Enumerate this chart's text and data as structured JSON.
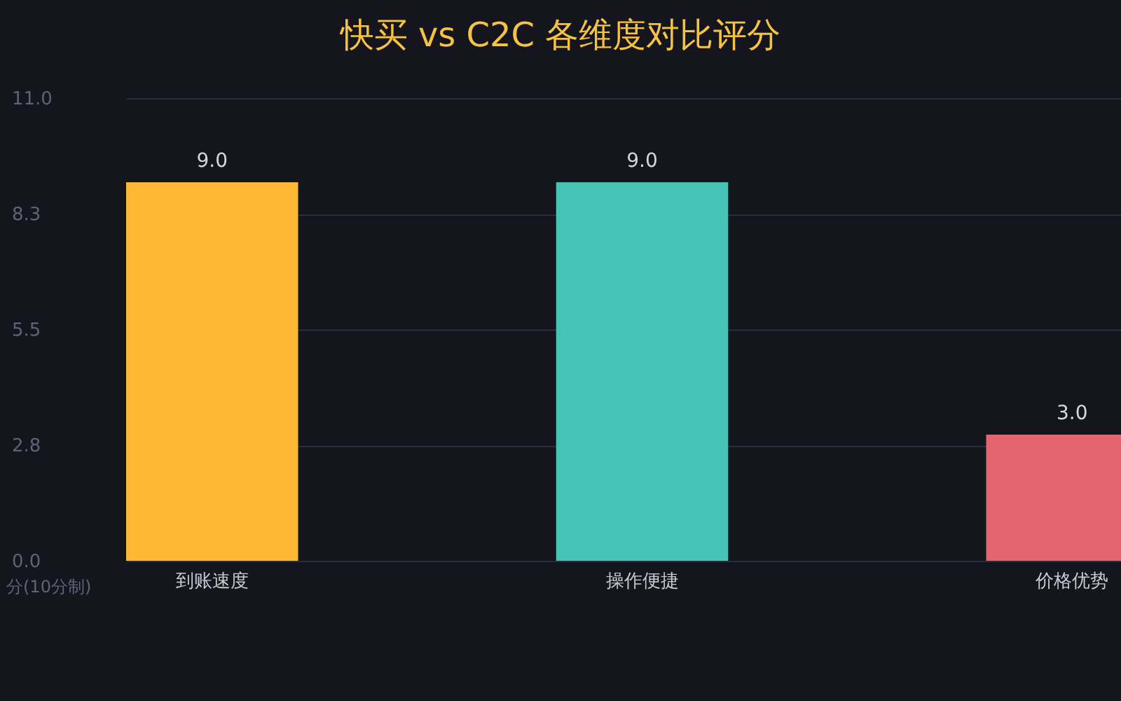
{
  "chart_data": {
    "type": "bar",
    "title": "快买 vs C2C 各维度对比评分",
    "ylabel": "分(10分制)",
    "categories": [
      "到账速度",
      "操作便捷",
      "价格优势"
    ],
    "values": [
      9,
      9,
      3
    ],
    "value_labels": [
      "9.0",
      "9.0",
      "3.0"
    ],
    "colors": [
      "#ffb833",
      "#45c4b6",
      "#e5646e"
    ],
    "ylim": [
      0,
      11
    ],
    "yticks": [
      {
        "value": 0,
        "label": "0.0"
      },
      {
        "value": 2.75,
        "label": "2.8"
      },
      {
        "value": 5.5,
        "label": "5.5"
      },
      {
        "value": 8.25,
        "label": "8.3"
      },
      {
        "value": 11,
        "label": "11.0"
      }
    ],
    "grid": "y"
  }
}
